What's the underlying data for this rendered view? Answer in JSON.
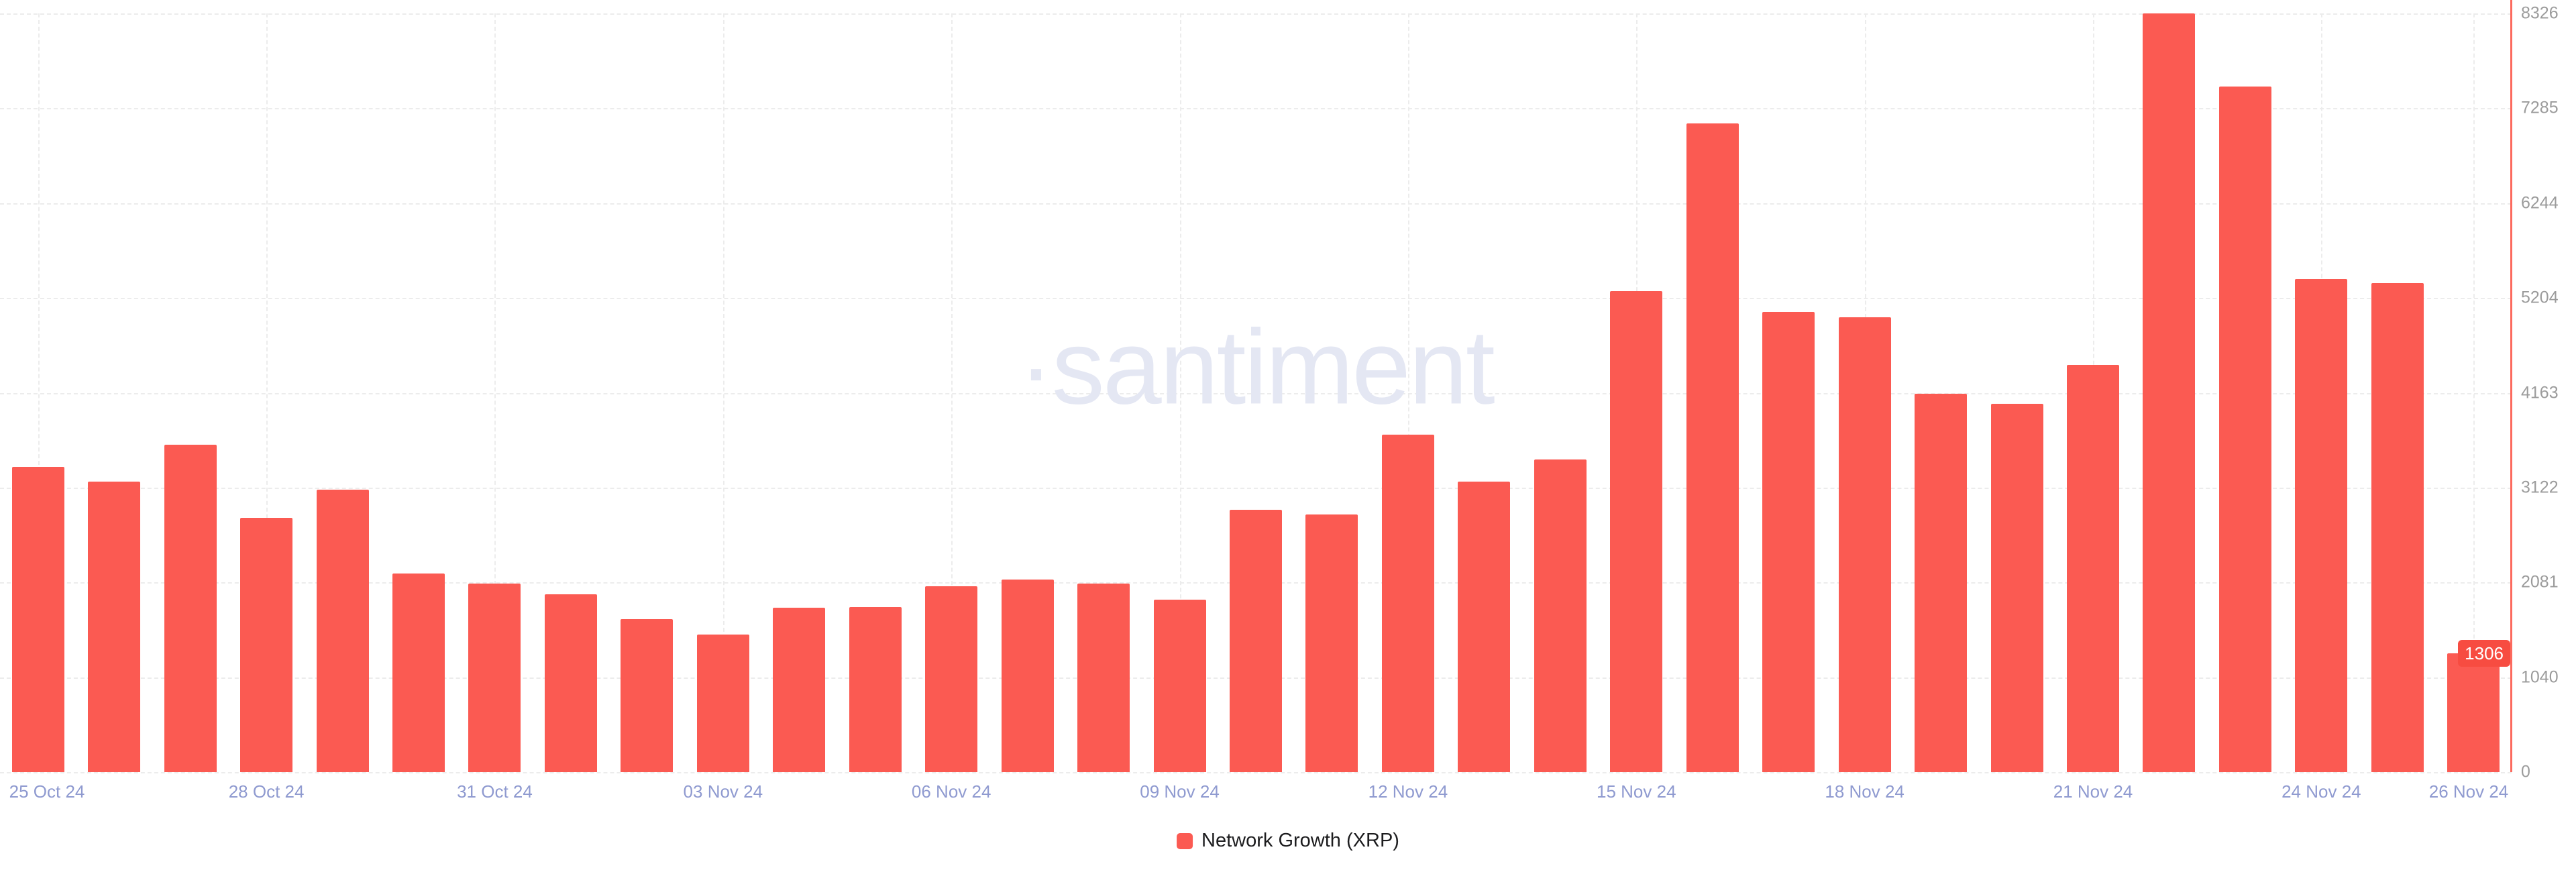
{
  "watermark": "·santiment",
  "colors": {
    "background": "#ffffff",
    "bar": "#fb5a52",
    "axis_line": "#fc6a5e",
    "badge_bg": "#f74c41",
    "grid": "#ececec",
    "x_label": "#8f9ad0",
    "y_label": "#9b9b9b",
    "watermark": "#e4e7f3",
    "legend_text": "#1d1d1f"
  },
  "chart_data": {
    "type": "bar",
    "title": "Network Growth (XRP)",
    "legend_label": "Network Growth (XRP)",
    "legend_position": "bottom",
    "grid": true,
    "ylim": [
      0,
      8326
    ],
    "y_ticks": [
      8326,
      7285,
      6244,
      5204,
      4163,
      3122,
      2081,
      1040,
      0
    ],
    "x": [
      "25 Oct 24",
      "26 Oct 24",
      "27 Oct 24",
      "28 Oct 24",
      "29 Oct 24",
      "30 Oct 24",
      "31 Oct 24",
      "01 Nov 24",
      "02 Nov 24",
      "03 Nov 24",
      "04 Nov 24",
      "05 Nov 24",
      "06 Nov 24",
      "07 Nov 24",
      "08 Nov 24",
      "09 Nov 24",
      "10 Nov 24",
      "11 Nov 24",
      "12 Nov 24",
      "13 Nov 24",
      "14 Nov 24",
      "15 Nov 24",
      "16 Nov 24",
      "17 Nov 24",
      "18 Nov 24",
      "19 Nov 24",
      "20 Nov 24",
      "21 Nov 24",
      "22 Nov 24",
      "23 Nov 24",
      "24 Nov 24",
      "25 Nov 24",
      "26 Nov 24"
    ],
    "values": [
      3350,
      3190,
      3590,
      2790,
      3100,
      2180,
      2070,
      1950,
      1680,
      1510,
      1800,
      1810,
      2040,
      2110,
      2070,
      1890,
      2880,
      2830,
      3700,
      3190,
      3430,
      5280,
      7120,
      5050,
      4990,
      4150,
      4040,
      4470,
      8326,
      7520,
      5410,
      5370,
      1306
    ],
    "x_tick_labels": [
      "25 Oct 24",
      "28 Oct 24",
      "31 Oct 24",
      "03 Nov 24",
      "06 Nov 24",
      "09 Nov 24",
      "12 Nov 24",
      "15 Nov 24",
      "18 Nov 24",
      "21 Nov 24",
      "24 Nov 24",
      "26 Nov 24"
    ],
    "x_tick_indices": [
      0,
      3,
      6,
      9,
      12,
      15,
      18,
      21,
      24,
      27,
      30,
      32
    ],
    "current_value": 1306,
    "current_value_label": "1306"
  }
}
